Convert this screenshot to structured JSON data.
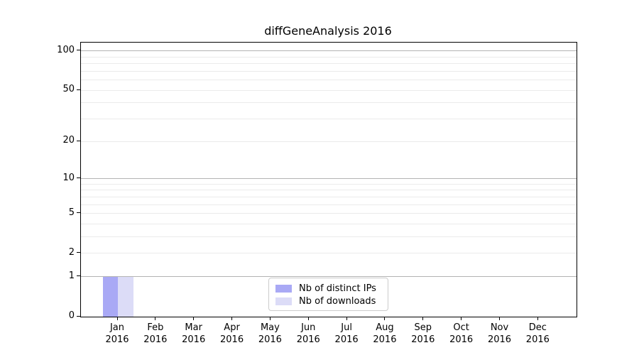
{
  "title": "diffGeneAnalysis 2016",
  "chart_data": {
    "type": "bar",
    "title": "diffGeneAnalysis 2016",
    "scale": "log1p",
    "grid": true,
    "categories": [
      "Jan 2016",
      "Feb 2016",
      "Mar 2016",
      "Apr 2016",
      "May 2016",
      "Jun 2016",
      "Jul 2016",
      "Aug 2016",
      "Sep 2016",
      "Oct 2016",
      "Nov 2016",
      "Dec 2016"
    ],
    "series": [
      {
        "name": "Nb of distinct IPs",
        "color": "#a9a9f5",
        "values": [
          1,
          0,
          0,
          0,
          0,
          0,
          0,
          0,
          0,
          0,
          0,
          0
        ]
      },
      {
        "name": "Nb of downloads",
        "color": "#dcdcf7",
        "values": [
          1,
          0,
          0,
          0,
          0,
          0,
          0,
          0,
          0,
          0,
          0,
          0
        ]
      }
    ],
    "xlabel": "",
    "ylabel": "",
    "ylim": [
      0,
      115
    ],
    "yticks": [
      100,
      50,
      20,
      10,
      5,
      2,
      1,
      0
    ],
    "major_gridlines": [
      1,
      10,
      100
    ],
    "minor_gridlines": [
      2,
      3,
      4,
      5,
      6,
      7,
      8,
      9,
      20,
      30,
      40,
      50,
      60,
      70,
      80,
      90
    ],
    "legend": {
      "position": "inside-bottom-center",
      "entries": [
        "Nb of distinct IPs",
        "Nb of downloads"
      ]
    }
  },
  "style": {
    "bar_color_distinct_ips": "#a9a9f5",
    "bar_color_downloads": "#dcdcf7",
    "major_grid_color": "#b3b3b3",
    "minor_grid_color": "#ebebeb",
    "axis_color": "#000000",
    "background": "#ffffff"
  }
}
